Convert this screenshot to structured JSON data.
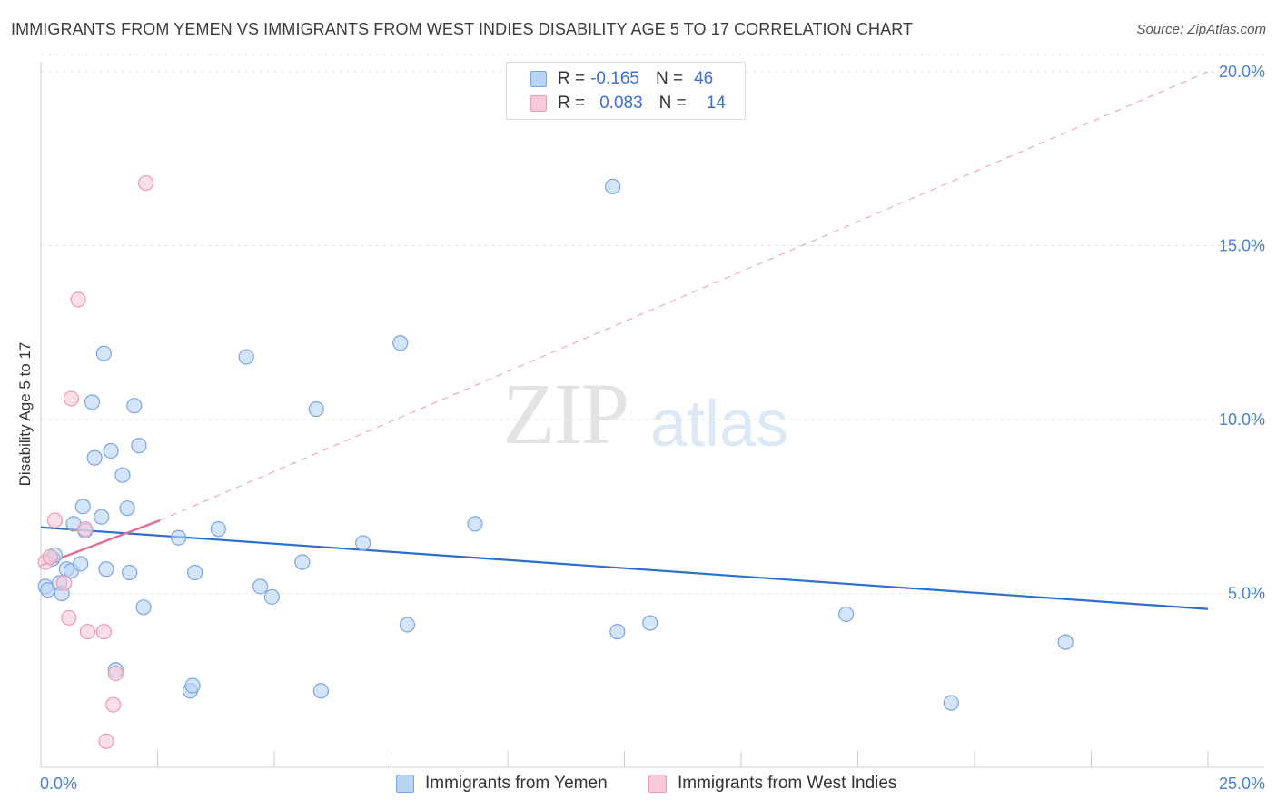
{
  "title": "IMMIGRANTS FROM YEMEN VS IMMIGRANTS FROM WEST INDIES DISABILITY AGE 5 TO 17 CORRELATION CHART",
  "source": "Source: ZipAtlas.com",
  "watermark": {
    "zip": "ZIP",
    "atlas": "atlas"
  },
  "legend": {
    "rows": [
      {
        "r_label": "R =",
        "r_value": "-0.165",
        "n_label": "N =",
        "n_value": "46"
      },
      {
        "r_label": "R =",
        "r_value": "0.083",
        "n_label": "N =",
        "n_value": "14"
      }
    ]
  },
  "chart_data": {
    "type": "scatter",
    "title": "IMMIGRANTS FROM YEMEN VS IMMIGRANTS FROM WEST INDIES DISABILITY AGE 5 TO 17 CORRELATION CHART",
    "xlabel": "",
    "ylabel": "Disability Age 5 to 17",
    "xlim": [
      0,
      25
    ],
    "ylim": [
      0,
      20.5
    ],
    "x_tick_labels": [
      "0.0%",
      "25.0%"
    ],
    "y_ticks": [
      5,
      10,
      15,
      20
    ],
    "y_tick_labels": [
      "5.0%",
      "10.0%",
      "15.0%",
      "20.0%"
    ],
    "colors": {
      "yemen_fill": "#b9d3f5",
      "yemen_stroke": "#7aa5e0",
      "yemen_line": "#2d6fcc",
      "westindies_fill": "#f9c9d8",
      "westindies_stroke": "#eb9ab5",
      "westindies_line": "#e0709a"
    },
    "series": [
      {
        "name": "Immigrants from Yemen",
        "r": -0.165,
        "n": 46,
        "trend": {
          "x": [
            0,
            25
          ],
          "y": [
            6.9,
            4.55
          ]
        },
        "points": [
          [
            0.1,
            5.2
          ],
          [
            0.15,
            5.1
          ],
          [
            0.25,
            6.0
          ],
          [
            0.3,
            6.1
          ],
          [
            0.4,
            5.3
          ],
          [
            0.45,
            5.0
          ],
          [
            0.55,
            5.7
          ],
          [
            0.65,
            5.65
          ],
          [
            0.7,
            7.0
          ],
          [
            0.85,
            5.85
          ],
          [
            0.9,
            7.5
          ],
          [
            0.95,
            6.8
          ],
          [
            1.1,
            10.5
          ],
          [
            1.15,
            8.9
          ],
          [
            1.3,
            7.2
          ],
          [
            1.35,
            11.9
          ],
          [
            1.4,
            5.7
          ],
          [
            1.5,
            9.1
          ],
          [
            1.6,
            2.8
          ],
          [
            1.75,
            8.4
          ],
          [
            1.85,
            7.45
          ],
          [
            1.9,
            5.6
          ],
          [
            2.0,
            10.4
          ],
          [
            2.1,
            9.25
          ],
          [
            2.2,
            4.6
          ],
          [
            2.95,
            6.6
          ],
          [
            3.2,
            2.2
          ],
          [
            3.25,
            2.35
          ],
          [
            3.3,
            5.6
          ],
          [
            3.8,
            6.85
          ],
          [
            4.4,
            11.8
          ],
          [
            4.7,
            5.2
          ],
          [
            4.95,
            4.9
          ],
          [
            5.6,
            5.9
          ],
          [
            5.9,
            10.3
          ],
          [
            6.0,
            2.2
          ],
          [
            6.9,
            6.45
          ],
          [
            7.7,
            12.2
          ],
          [
            7.85,
            4.1
          ],
          [
            9.3,
            7.0
          ],
          [
            12.25,
            16.7
          ],
          [
            12.35,
            3.9
          ],
          [
            13.05,
            4.15
          ],
          [
            17.25,
            4.4
          ],
          [
            21.95,
            3.6
          ],
          [
            19.5,
            1.85
          ]
        ]
      },
      {
        "name": "Immigrants from West Indies",
        "r": 0.083,
        "n": 14,
        "trend": {
          "x": [
            0,
            2.55
          ],
          "y": [
            5.8,
            7.1
          ]
        },
        "trend_ext": {
          "x": [
            2.55,
            25
          ],
          "y": [
            7.1,
            20.0
          ]
        },
        "points": [
          [
            0.1,
            5.9
          ],
          [
            0.2,
            6.05
          ],
          [
            0.3,
            7.1
          ],
          [
            0.5,
            5.3
          ],
          [
            0.6,
            4.3
          ],
          [
            0.65,
            10.6
          ],
          [
            0.8,
            13.45
          ],
          [
            0.95,
            6.85
          ],
          [
            1.0,
            3.9
          ],
          [
            1.35,
            3.9
          ],
          [
            1.6,
            2.7
          ],
          [
            1.55,
            1.8
          ],
          [
            1.4,
            0.75
          ],
          [
            2.25,
            16.8
          ]
        ]
      }
    ]
  },
  "bottom_legend": [
    "Immigrants from Yemen",
    "Immigrants from West Indies"
  ]
}
